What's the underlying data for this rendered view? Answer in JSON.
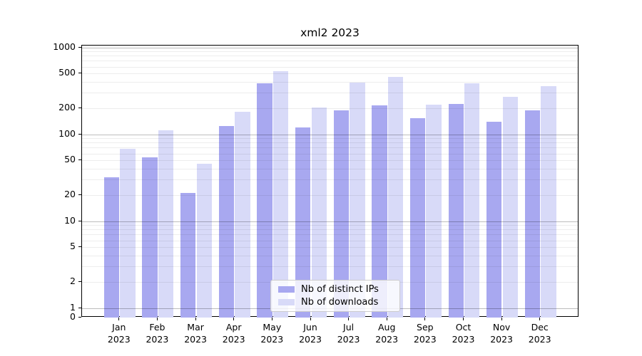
{
  "figure": {
    "background": "#ffffff"
  },
  "chart_data": {
    "type": "bar",
    "title": "xml2 2023",
    "x_months": [
      "Jan",
      "Feb",
      "Mar",
      "Apr",
      "May",
      "Jun",
      "Jul",
      "Aug",
      "Sep",
      "Oct",
      "Nov",
      "Dec"
    ],
    "x_year": "2023",
    "categories": [
      "Jan 2023",
      "Feb 2023",
      "Mar 2023",
      "Apr 2023",
      "May 2023",
      "Jun 2023",
      "Jul 2023",
      "Aug 2023",
      "Sep 2023",
      "Oct 2023",
      "Nov 2023",
      "Dec 2023"
    ],
    "series": [
      {
        "name": "Nb of distinct IPs",
        "slug": "distinct-ips",
        "color": "#a8a8f0",
        "values": [
          32,
          54,
          21,
          125,
          388,
          120,
          190,
          216,
          153,
          223,
          139,
          190
        ]
      },
      {
        "name": "Nb of downloads",
        "slug": "downloads",
        "color": "#d8daf8",
        "values": [
          68,
          112,
          46,
          180,
          530,
          202,
          395,
          455,
          219,
          388,
          270,
          358
        ]
      }
    ],
    "yscale": "symlog",
    "y_ticks": [
      1000,
      500,
      200,
      100,
      50,
      20,
      10,
      5,
      2,
      1,
      0
    ],
    "ylim": [
      0,
      1050
    ],
    "grid": "horizontal",
    "legend_position": "lower center"
  }
}
